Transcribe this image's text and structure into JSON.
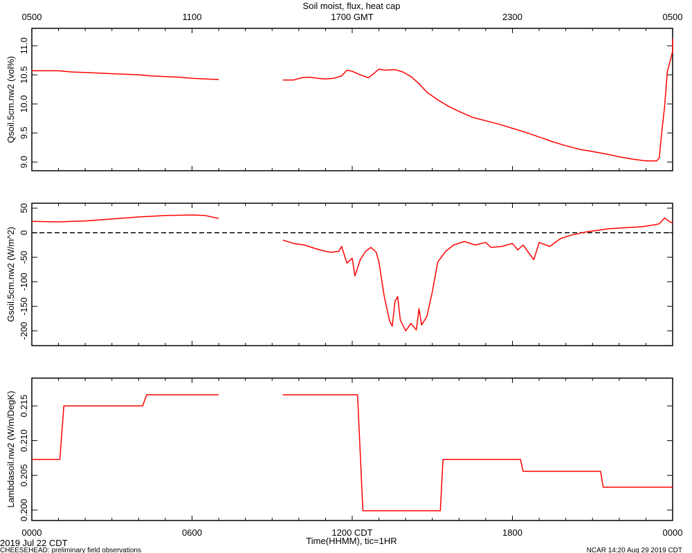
{
  "title": "Soil moist, flux, heat cap",
  "top_axis": {
    "ticks": [
      [
        0,
        "0500"
      ],
      [
        6,
        "1100"
      ],
      [
        12,
        "1700 GMT"
      ],
      [
        18,
        "2300"
      ],
      [
        24,
        "0500"
      ]
    ]
  },
  "x_axis": {
    "label": "Time(HHMM), tic=1HR",
    "range": [
      0,
      24
    ],
    "ticks": [
      [
        0,
        "0000"
      ],
      [
        6,
        "0600"
      ],
      [
        12,
        "1200 CDT"
      ],
      [
        18,
        "1800"
      ],
      [
        24,
        "0000"
      ]
    ]
  },
  "footer": {
    "date": "2019 Jul 22 CDT",
    "left": "CHEESEHEAD: preliminary field observations",
    "right": "NCAR 14:20 Aug 29 2019 CDT"
  },
  "colors": {
    "series": "#ff0000",
    "axis": "#000000"
  },
  "chart_data": [
    {
      "type": "line",
      "title": "Soil moist, flux, heat cap",
      "ylabel": "Qsoil.5cm.nw2 (vol%)",
      "xlabel": "",
      "xlim": [
        0,
        24
      ],
      "ylim": [
        8.85,
        11.3
      ],
      "yticks": [
        [
          9.0,
          "9.0"
        ],
        [
          9.5,
          "9.5"
        ],
        [
          10.0,
          "10.0"
        ],
        [
          10.5,
          "10.5"
        ],
        [
          11.0,
          "11.0"
        ]
      ],
      "grid": false,
      "series": [
        {
          "values": [
            [
              [
                0,
                10.57
              ],
              [
                0.5,
                10.57
              ],
              [
                1.0,
                10.57
              ],
              [
                1.5,
                10.55
              ],
              [
                2.0,
                10.54
              ],
              [
                2.5,
                10.53
              ],
              [
                3.0,
                10.52
              ],
              [
                3.5,
                10.51
              ],
              [
                4.0,
                10.5
              ],
              [
                4.5,
                10.48
              ],
              [
                5.0,
                10.47
              ],
              [
                5.5,
                10.46
              ],
              [
                6.0,
                10.44
              ],
              [
                6.5,
                10.43
              ],
              [
                7.0,
                10.42
              ]
            ],
            [
              [
                9.4,
                10.41
              ],
              [
                9.8,
                10.41
              ],
              [
                10.1,
                10.45
              ],
              [
                10.4,
                10.46
              ],
              [
                10.7,
                10.44
              ],
              [
                11.0,
                10.43
              ],
              [
                11.3,
                10.44
              ],
              [
                11.6,
                10.48
              ],
              [
                11.8,
                10.58
              ],
              [
                12.0,
                10.56
              ],
              [
                12.3,
                10.5
              ],
              [
                12.6,
                10.45
              ],
              [
                12.8,
                10.52
              ],
              [
                13.0,
                10.6
              ],
              [
                13.2,
                10.58
              ],
              [
                13.6,
                10.59
              ],
              [
                13.9,
                10.55
              ],
              [
                14.2,
                10.47
              ],
              [
                14.5,
                10.35
              ],
              [
                14.8,
                10.2
              ],
              [
                15.2,
                10.07
              ],
              [
                15.6,
                9.96
              ],
              [
                16.0,
                9.87
              ],
              [
                16.5,
                9.77
              ],
              [
                17.0,
                9.71
              ],
              [
                17.5,
                9.65
              ],
              [
                18.0,
                9.58
              ],
              [
                18.5,
                9.51
              ],
              [
                19.0,
                9.43
              ],
              [
                19.5,
                9.35
              ],
              [
                20.0,
                9.28
              ],
              [
                20.5,
                9.22
              ],
              [
                21.0,
                9.18
              ],
              [
                21.5,
                9.14
              ],
              [
                22.0,
                9.09
              ],
              [
                22.5,
                9.05
              ],
              [
                23.0,
                9.02
              ],
              [
                23.4,
                9.02
              ],
              [
                23.5,
                9.07
              ],
              [
                23.6,
                9.55
              ],
              [
                23.7,
                9.95
              ],
              [
                23.8,
                10.55
              ],
              [
                24.0,
                10.9
              ],
              [
                24.0,
                11.12
              ]
            ]
          ]
        }
      ]
    },
    {
      "type": "line",
      "title": "",
      "ylabel": "Gsoil.5cm.nw2 (W/m^2)",
      "xlabel": "",
      "xlim": [
        0,
        24
      ],
      "ylim": [
        -230,
        60
      ],
      "yticks": [
        [
          -200,
          "-200"
        ],
        [
          -150,
          "-150"
        ],
        [
          -100,
          "-100"
        ],
        [
          -50,
          "-50"
        ],
        [
          0,
          "0"
        ],
        [
          50,
          "50"
        ]
      ],
      "zero_line": 0,
      "grid": false,
      "series": [
        {
          "values": [
            [
              [
                0,
                23
              ],
              [
                1.0,
                22
              ],
              [
                2.0,
                24
              ],
              [
                3.0,
                28
              ],
              [
                4.0,
                32
              ],
              [
                5.0,
                35
              ],
              [
                6.0,
                36
              ],
              [
                6.5,
                35
              ],
              [
                7.0,
                29
              ]
            ],
            [
              [
                9.4,
                -15
              ],
              [
                9.8,
                -22
              ],
              [
                10.2,
                -25
              ],
              [
                10.6,
                -32
              ],
              [
                11.0,
                -38
              ],
              [
                11.2,
                -40
              ],
              [
                11.5,
                -38
              ],
              [
                11.6,
                -28
              ],
              [
                11.8,
                -62
              ],
              [
                12.0,
                -52
              ],
              [
                12.1,
                -88
              ],
              [
                12.3,
                -55
              ],
              [
                12.5,
                -38
              ],
              [
                12.7,
                -30
              ],
              [
                12.9,
                -40
              ],
              [
                13.0,
                -60
              ],
              [
                13.2,
                -130
              ],
              [
                13.4,
                -180
              ],
              [
                13.5,
                -190
              ],
              [
                13.6,
                -140
              ],
              [
                13.7,
                -130
              ],
              [
                13.8,
                -178
              ],
              [
                14.0,
                -200
              ],
              [
                14.2,
                -185
              ],
              [
                14.4,
                -198
              ],
              [
                14.5,
                -155
              ],
              [
                14.6,
                -188
              ],
              [
                14.8,
                -170
              ],
              [
                15.0,
                -120
              ],
              [
                15.2,
                -60
              ],
              [
                15.5,
                -38
              ],
              [
                15.8,
                -25
              ],
              [
                16.2,
                -18
              ],
              [
                16.6,
                -25
              ],
              [
                17.0,
                -20
              ],
              [
                17.2,
                -30
              ],
              [
                17.6,
                -28
              ],
              [
                18.0,
                -22
              ],
              [
                18.2,
                -35
              ],
              [
                18.4,
                -25
              ],
              [
                18.6,
                -40
              ],
              [
                18.8,
                -55
              ],
              [
                19.0,
                -20
              ],
              [
                19.4,
                -28
              ],
              [
                19.8,
                -12
              ],
              [
                20.2,
                -5
              ],
              [
                20.8,
                2
              ],
              [
                21.2,
                5
              ],
              [
                21.6,
                8
              ],
              [
                22.2,
                10
              ],
              [
                22.8,
                12
              ],
              [
                23.2,
                15
              ],
              [
                23.5,
                18
              ],
              [
                23.7,
                30
              ],
              [
                23.9,
                22
              ],
              [
                24.0,
                20
              ]
            ]
          ]
        }
      ]
    },
    {
      "type": "line",
      "title": "",
      "ylabel": "Lambdasoil.nw2 (W/m/DegK)",
      "xlabel": "Time(HHMM), tic=1HR",
      "xlim": [
        0,
        24
      ],
      "ylim": [
        0.1985,
        0.219
      ],
      "yticks": [
        [
          0.2,
          "0.200"
        ],
        [
          0.205,
          "0.205"
        ],
        [
          0.21,
          "0.210"
        ],
        [
          0.215,
          "0.215"
        ]
      ],
      "grid": false,
      "series": [
        {
          "values": [
            [
              [
                0,
                0.2073
              ],
              [
                1.05,
                0.2073
              ],
              [
                1.2,
                0.215
              ],
              [
                4.15,
                0.215
              ],
              [
                4.3,
                0.2166
              ],
              [
                7.0,
                0.2166
              ]
            ],
            [
              [
                9.4,
                0.2166
              ],
              [
                12.2,
                0.2166
              ],
              [
                12.4,
                0.1999
              ],
              [
                15.3,
                0.1999
              ],
              [
                15.4,
                0.2073
              ],
              [
                18.3,
                0.2073
              ],
              [
                18.4,
                0.2056
              ],
              [
                21.3,
                0.2056
              ],
              [
                21.4,
                0.2033
              ],
              [
                24.0,
                0.2033
              ]
            ]
          ]
        }
      ]
    }
  ]
}
